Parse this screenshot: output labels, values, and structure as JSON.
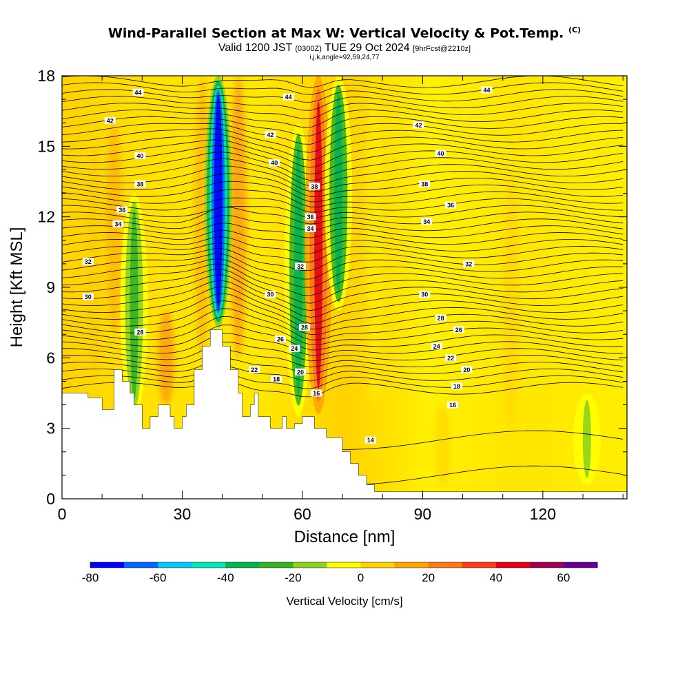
{
  "chart_data": {
    "type": "heatmap",
    "title": "Wind-Parallel Section at Max W: Vertical Velocity & Pot.Temp.",
    "title_mark": "(C)",
    "subtitle_main_1": "Valid 1200 JST",
    "subtitle_small_1": "(0300Z)",
    "subtitle_main_2": "TUE 29 Oct 2024",
    "subtitle_small_2": "[9hrFcst@2210z]",
    "subtitle_indices": "i,j,k,angle=92,59,24,77",
    "xlabel": "Distance [nm]",
    "ylabel": "Height [Kft MSL]",
    "xlim": [
      0,
      141
    ],
    "ylim": [
      0,
      18
    ],
    "x_ticks": [
      0,
      30,
      60,
      90,
      120
    ],
    "y_ticks": [
      0,
      3,
      6,
      9,
      12,
      15,
      18
    ],
    "grid": false,
    "colorbar": {
      "label": "Vertical Velocity [cm/s]",
      "min": -80,
      "max": 70,
      "step": 10,
      "tick_values": [
        -80,
        -60,
        -40,
        -20,
        0,
        20,
        40,
        60
      ],
      "colors": [
        "#0000ff",
        "#0066ff",
        "#00c8ff",
        "#00e6b4",
        "#00b450",
        "#32b428",
        "#8cd21e",
        "#ffff00",
        "#ffd200",
        "#ffa500",
        "#ff7814",
        "#ff3c14",
        "#e60014",
        "#a00050",
        "#640096"
      ]
    },
    "updrafts": [
      {
        "x": 18,
        "y_bottom": 3.5,
        "y_top": 13,
        "w_cm_s": -30
      },
      {
        "x": 39,
        "y_bottom": 7.3,
        "y_top": 18,
        "w_cm_s": -80
      },
      {
        "x": 59,
        "y_bottom": 3.5,
        "y_top": 16,
        "w_cm_s": -40
      },
      {
        "x": 64,
        "y_bottom": 3.6,
        "y_top": 18,
        "w_cm_s": 40
      },
      {
        "x": 69,
        "y_bottom": 8,
        "y_top": 18,
        "w_cm_s": -40
      },
      {
        "x": 131,
        "y_bottom": 0.6,
        "y_top": 4.5,
        "w_cm_s": -20
      }
    ],
    "isentrope_labels": [
      {
        "text": "44",
        "x": 19,
        "y": 17.3
      },
      {
        "text": "44",
        "x": 56.5,
        "y": 17.1
      },
      {
        "text": "44",
        "x": 106,
        "y": 17.4
      },
      {
        "text": "42",
        "x": 12,
        "y": 16.1
      },
      {
        "text": "42",
        "x": 52,
        "y": 15.5
      },
      {
        "text": "42",
        "x": 89,
        "y": 15.9
      },
      {
        "text": "40",
        "x": 19.5,
        "y": 14.6
      },
      {
        "text": "40",
        "x": 53,
        "y": 14.3
      },
      {
        "text": "40",
        "x": 94.5,
        "y": 14.7
      },
      {
        "text": "38",
        "x": 19.5,
        "y": 13.4
      },
      {
        "text": "38",
        "x": 63,
        "y": 13.3
      },
      {
        "text": "38",
        "x": 90.5,
        "y": 13.4
      },
      {
        "text": "36",
        "x": 15,
        "y": 12.3
      },
      {
        "text": "36",
        "x": 62,
        "y": 12.0
      },
      {
        "text": "36",
        "x": 97,
        "y": 12.5
      },
      {
        "text": "34",
        "x": 14,
        "y": 11.7
      },
      {
        "text": "34",
        "x": 62,
        "y": 11.5
      },
      {
        "text": "34",
        "x": 91,
        "y": 11.8
      },
      {
        "text": "32",
        "x": 6.5,
        "y": 10.1
      },
      {
        "text": "32",
        "x": 59.5,
        "y": 9.9
      },
      {
        "text": "32",
        "x": 101.5,
        "y": 10.0
      },
      {
        "text": "30",
        "x": 6.5,
        "y": 8.6
      },
      {
        "text": "30",
        "x": 52,
        "y": 8.7
      },
      {
        "text": "30",
        "x": 90.5,
        "y": 8.7
      },
      {
        "text": "28",
        "x": 19.5,
        "y": 7.1
      },
      {
        "text": "28",
        "x": 60.5,
        "y": 7.3
      },
      {
        "text": "28",
        "x": 94.5,
        "y": 7.7
      },
      {
        "text": "26",
        "x": 54.5,
        "y": 6.8
      },
      {
        "text": "26",
        "x": 99,
        "y": 7.2
      },
      {
        "text": "24",
        "x": 58,
        "y": 6.4
      },
      {
        "text": "24",
        "x": 93.5,
        "y": 6.5
      },
      {
        "text": "22",
        "x": 48,
        "y": 5.5
      },
      {
        "text": "22",
        "x": 97,
        "y": 6.0
      },
      {
        "text": "20",
        "x": 59.5,
        "y": 5.4
      },
      {
        "text": "20",
        "x": 101,
        "y": 5.5
      },
      {
        "text": "18",
        "x": 53.5,
        "y": 5.1
      },
      {
        "text": "18",
        "x": 98.5,
        "y": 4.8
      },
      {
        "text": "16",
        "x": 63.5,
        "y": 4.5
      },
      {
        "text": "16",
        "x": 97.5,
        "y": 4.0
      },
      {
        "text": "14",
        "x": 77,
        "y": 2.5
      }
    ]
  }
}
